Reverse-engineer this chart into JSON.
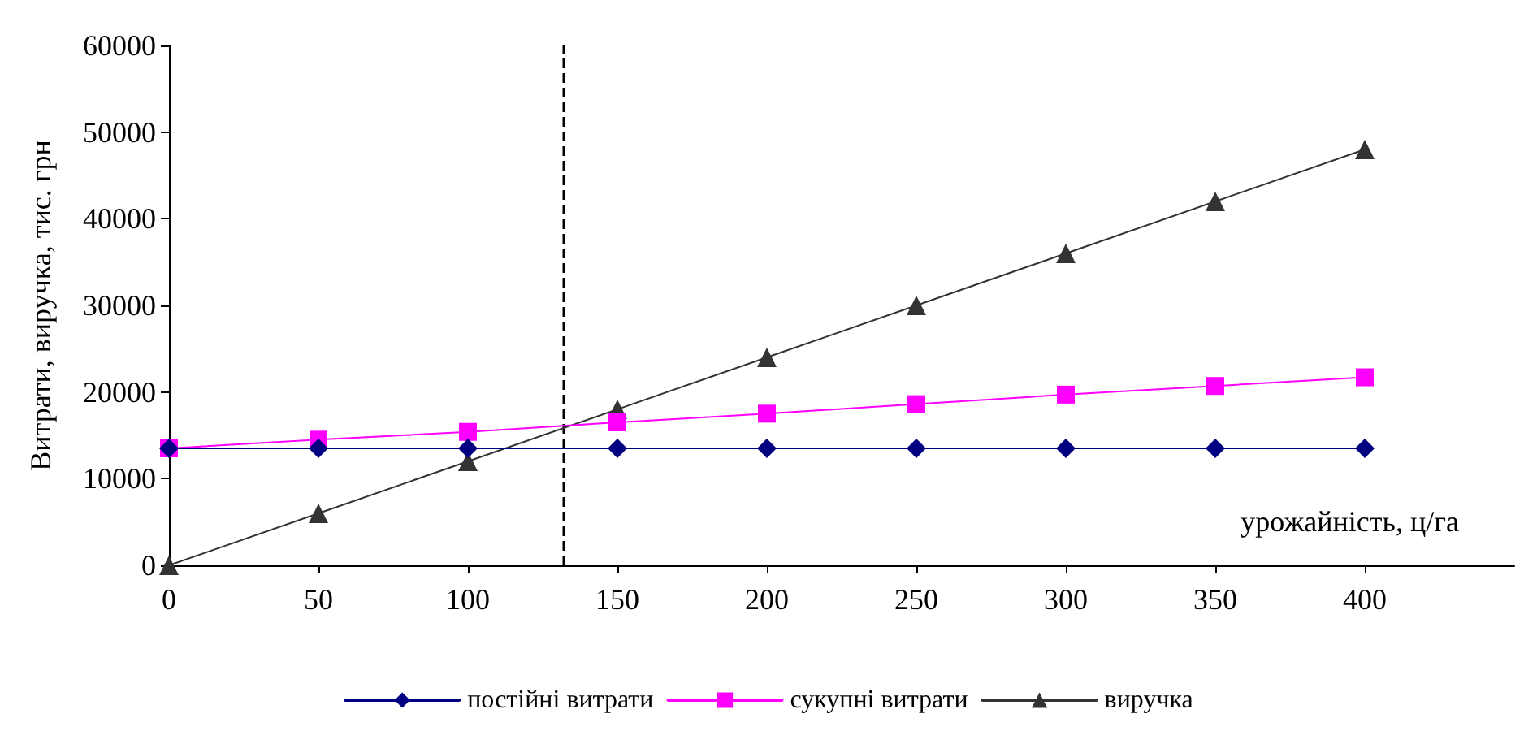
{
  "chart_data": {
    "type": "line",
    "ylabel": "Витрати, виручка, тис. грн",
    "xlabel": "урожайність, ц/га",
    "x": [
      0,
      50,
      100,
      150,
      200,
      250,
      300,
      350,
      400
    ],
    "series": [
      {
        "name": "постійні витрати",
        "color": "#000080",
        "marker": "diamond",
        "values": [
          13500,
          13500,
          13500,
          13500,
          13500,
          13500,
          13500,
          13500,
          13500
        ]
      },
      {
        "name": "сукупні витрати",
        "color": "#ff00ff",
        "marker": "square",
        "values": [
          13500,
          14500,
          15400,
          16500,
          17500,
          18600,
          19700,
          20700,
          21700
        ]
      },
      {
        "name": "виручка",
        "color": "#333333",
        "marker": "triangle",
        "values": [
          0,
          6000,
          12000,
          18000,
          24000,
          30000,
          36000,
          42000,
          48000
        ]
      }
    ],
    "xlim": [
      0,
      450
    ],
    "xticks": [
      0,
      50,
      100,
      150,
      200,
      250,
      300,
      350,
      400
    ],
    "ylim": [
      0,
      60000
    ],
    "yticks": [
      0,
      10000,
      20000,
      30000,
      40000,
      50000,
      60000
    ],
    "ref_lines": [
      {
        "axis": "x",
        "value": 132,
        "color": "#000000",
        "line_style": "dashed"
      }
    ],
    "grid": false,
    "legend": "bottom",
    "line_style": "solid"
  }
}
